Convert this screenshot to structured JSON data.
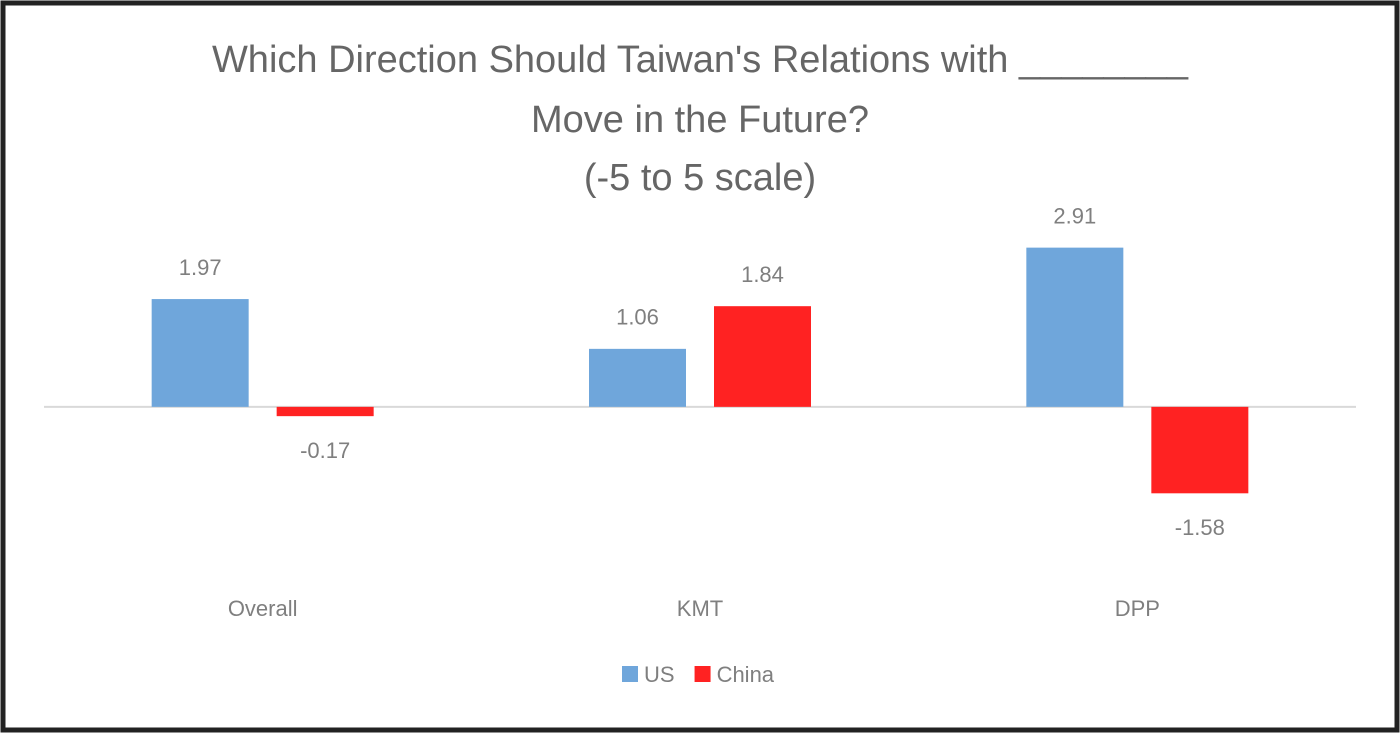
{
  "chart_data": {
    "type": "bar",
    "title": [
      "Which Direction Should Taiwan's Relations with ________",
      "Move in the Future?",
      "(-5 to 5 scale)"
    ],
    "categories": [
      "Overall",
      "KMT",
      "DPP"
    ],
    "series": [
      {
        "name": "US",
        "color": "#6fa6db",
        "values": [
          1.97,
          1.06,
          2.91
        ]
      },
      {
        "name": "China",
        "color": "#ff2222",
        "values": [
          -0.17,
          1.84,
          -1.58
        ]
      }
    ],
    "ylim": [
      -3,
      4
    ],
    "legend": "bottom"
  }
}
